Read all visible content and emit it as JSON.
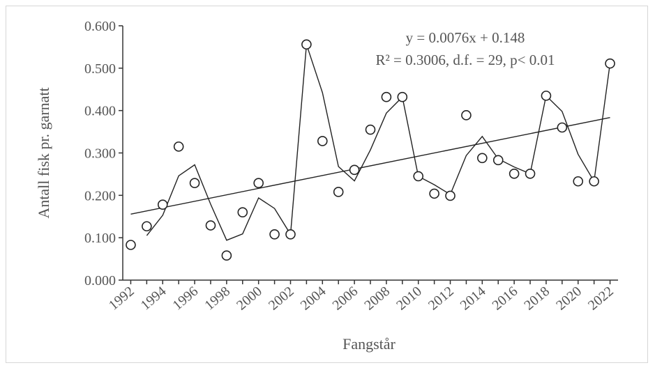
{
  "chart_data": {
    "type": "scatter",
    "xlabel": "Fangstår",
    "ylabel": "Antall fisk pr. garnatt",
    "x_ticks": [
      "1992",
      "1994",
      "1996",
      "1998",
      "2000",
      "2002",
      "2004",
      "2006",
      "2008",
      "2010",
      "2012",
      "2014",
      "2016",
      "2018",
      "2020",
      "2022"
    ],
    "y_ticks": [
      "0.000",
      "0.100",
      "0.200",
      "0.300",
      "0.400",
      "0.500",
      "0.600"
    ],
    "xlim": [
      1991.5,
      2022.5
    ],
    "ylim": [
      0,
      0.6
    ],
    "annotation": {
      "line1": "y = 0.0076x + 0.148",
      "line2": "R² = 0.3006, d.f. = 29, p< 0.01"
    },
    "series": [
      {
        "type": "scatter",
        "x": [
          1992,
          1993,
          1994,
          1995,
          1996,
          1997,
          1998,
          1999,
          2000,
          2001,
          2002,
          2003,
          2004,
          2005,
          2006,
          2007,
          2008,
          2009,
          2010,
          2011,
          2012,
          2013,
          2014,
          2015,
          2016,
          2017,
          2018,
          2019,
          2020,
          2021,
          2022
        ],
        "y": [
          0.083,
          0.127,
          0.178,
          0.315,
          0.229,
          0.129,
          0.058,
          0.16,
          0.229,
          0.108,
          0.108,
          0.556,
          0.328,
          0.208,
          0.26,
          0.355,
          0.432,
          0.432,
          0.245,
          0.204,
          0.199,
          0.389,
          0.288,
          0.283,
          0.251,
          0.251,
          0.435,
          0.36,
          0.233,
          0.233,
          0.511
        ]
      },
      {
        "type": "moving_average",
        "x": [
          1993,
          1994,
          1995,
          1996,
          1997,
          1998,
          1999,
          2000,
          2001,
          2002,
          2003,
          2004,
          2005,
          2006,
          2007,
          2008,
          2009,
          2010,
          2011,
          2012,
          2013,
          2014,
          2015,
          2016,
          2017,
          2018,
          2019,
          2020,
          2021,
          2022
        ],
        "y": [
          0.105,
          0.153,
          0.246,
          0.272,
          0.179,
          0.094,
          0.109,
          0.194,
          0.169,
          0.108,
          0.556,
          0.442,
          0.268,
          0.234,
          0.307,
          0.394,
          0.432,
          0.245,
          0.225,
          0.202,
          0.294,
          0.339,
          0.286,
          0.267,
          0.251,
          0.435,
          0.398,
          0.297,
          0.233,
          0.511
        ]
      },
      {
        "type": "trendline",
        "x": [
          1992,
          2022
        ],
        "y": [
          0.1556,
          0.3836
        ]
      }
    ]
  }
}
